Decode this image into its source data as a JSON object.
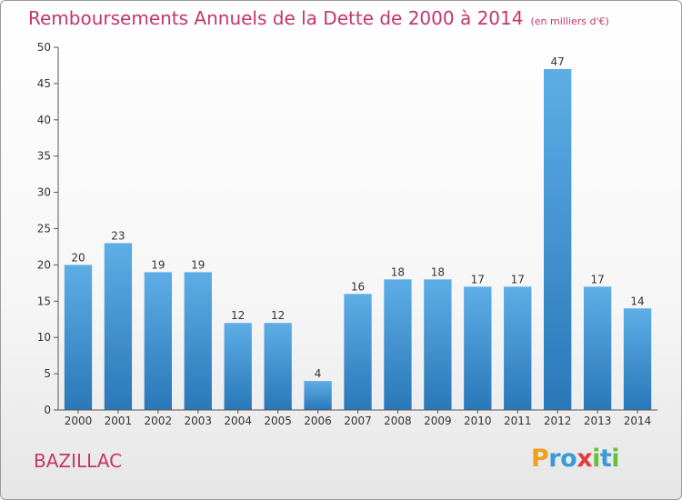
{
  "title": "Remboursements Annuels de la Dette de 2000 à 2014",
  "subtitle": "(en milliers d'€)",
  "commune": "BAZILLAC",
  "brand": {
    "text": "Proxiti",
    "letters": [
      {
        "ch": "P",
        "color": "#f0a020"
      },
      {
        "ch": "r",
        "color": "#3a9ad8"
      },
      {
        "ch": "o",
        "color": "#3a9ad8"
      },
      {
        "ch": "x",
        "color": "#e03c3c"
      },
      {
        "ch": "i",
        "color": "#6abf3a"
      },
      {
        "ch": "t",
        "color": "#3a9ad8"
      },
      {
        "ch": "i",
        "color": "#6abf3a"
      }
    ]
  },
  "colors": {
    "title": "#c3366b",
    "bar_top": "#5dade6",
    "bar_bottom": "#2a78b8",
    "axis": "#555555",
    "grid": "#d8d8d8"
  },
  "chart_data": {
    "type": "bar",
    "categories": [
      "2000",
      "2001",
      "2002",
      "2003",
      "2004",
      "2005",
      "2006",
      "2007",
      "2008",
      "2009",
      "2010",
      "2011",
      "2012",
      "2013",
      "2014"
    ],
    "values": [
      20,
      23,
      19,
      19,
      12,
      12,
      4,
      16,
      18,
      18,
      17,
      17,
      47,
      17,
      14
    ],
    "ylim": [
      0,
      50
    ],
    "yticks": [
      0,
      5,
      10,
      15,
      20,
      25,
      30,
      35,
      40,
      45,
      50
    ],
    "grid": false,
    "data_labels": true
  }
}
